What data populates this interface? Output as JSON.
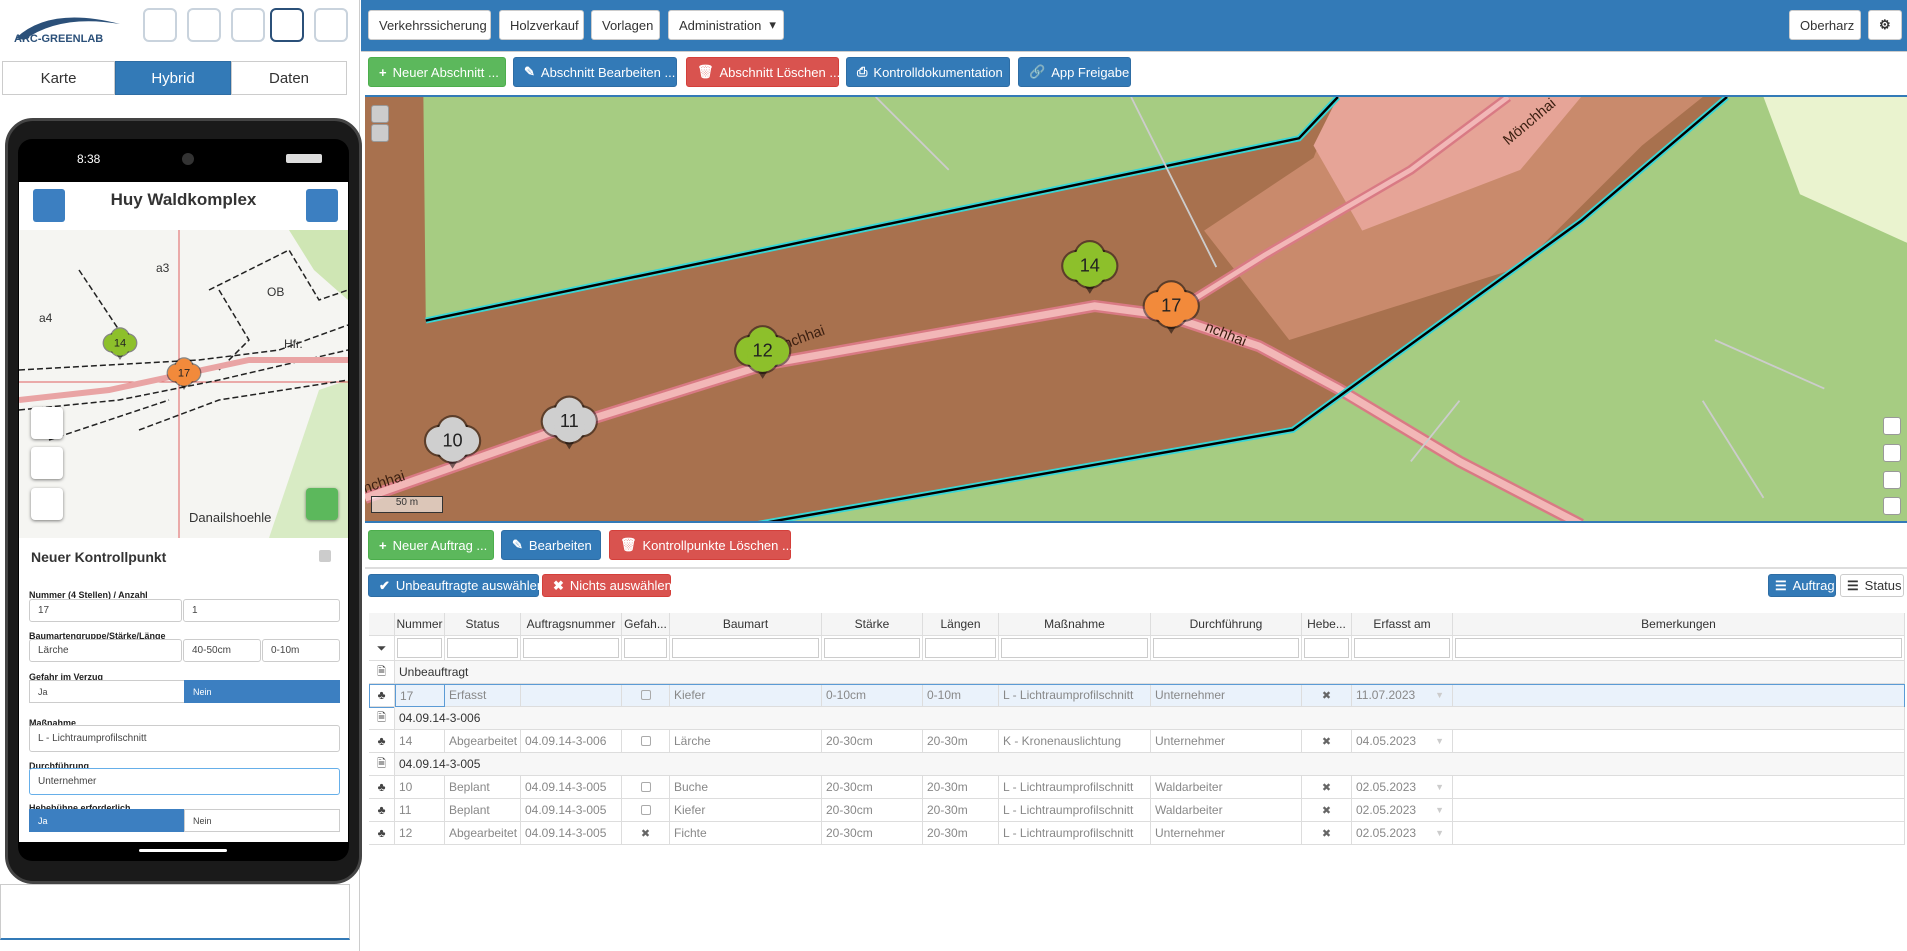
{
  "header": {
    "logo": "ARC-GREENLAB",
    "nav": [
      "Verkehrssicherung",
      "Holzverkauf",
      "Vorlagen",
      "Administration"
    ],
    "user": "Oberharz"
  },
  "view_tabs": {
    "items": [
      "Karte",
      "Hybrid",
      "Daten"
    ],
    "active": 1
  },
  "toolbar": [
    "Neuer Abschnitt ...",
    "Abschnitt Bearbeiten ...",
    "Abschnitt Löschen ...",
    "Kontrolldokumentation",
    "App Freigabe"
  ],
  "map": {
    "markers": [
      {
        "label": "14",
        "color": "#8dc02b"
      },
      {
        "label": "17",
        "color": "#f28a3b"
      },
      {
        "label": "12",
        "color": "#8dc02b"
      },
      {
        "label": "11",
        "color": "#cfcfcf"
      },
      {
        "label": "10",
        "color": "#cfcfcf"
      }
    ],
    "road_labels": [
      "Mönchhai",
      "Mönchhai",
      "nchhai",
      "nchhai"
    ],
    "scale": "50 m"
  },
  "actions": [
    "Neuer Auftrag ...",
    "Bearbeiten",
    "Kontrollpunkte Löschen ..."
  ],
  "selection": [
    "Unbeauftragte auswählen",
    "Nichts auswählen"
  ],
  "view_toggle": {
    "items": [
      "Auftrag",
      "Status"
    ],
    "active": 0
  },
  "table": {
    "columns": [
      "Nummer",
      "Status",
      "Auftragsnummer",
      "Gefah...",
      "Baumart",
      "Stärke",
      "Längen",
      "Maßnahme",
      "Durchführung",
      "Hebe...",
      "Erfasst am",
      "Bemerkungen"
    ],
    "groups": [
      {
        "label": "Unbeauftragt",
        "rows": [
          [
            "17",
            "Erfasst",
            null,
            false,
            "Kiefer",
            "0-10cm",
            "0-10m",
            "L - Lichtraumprofilschnitt",
            "Unternehmer",
            true,
            "11.07.2023"
          ]
        ]
      },
      {
        "label": "04.09.14-3-006",
        "rows": [
          [
            "14",
            "Abgearbeitet",
            "04.09.14-3-006",
            false,
            "Lärche",
            "20-30cm",
            "20-30m",
            "K - Kronenauslichtung",
            "Unternehmer",
            true,
            "04.05.2023"
          ]
        ]
      },
      {
        "label": "04.09.14-3-005",
        "rows": [
          [
            "10",
            "Beplant",
            "04.09.14-3-005",
            false,
            "Buche",
            "20-30cm",
            "20-30m",
            "L - Lichtraumprofilschnitt",
            "Waldarbeiter",
            true,
            "02.05.2023"
          ],
          [
            "11",
            "Beplant",
            "04.09.14-3-005",
            false,
            "Kiefer",
            "20-30cm",
            "20-30m",
            "L - Lichtraumprofilschnitt",
            "Waldarbeiter",
            true,
            "02.05.2023"
          ],
          [
            "12",
            "Abgearbeitet",
            "04.09.14-3-005",
            true,
            "Fichte",
            "20-30cm",
            "20-30m",
            "L - Lichtraumprofilschnitt",
            "Unternehmer",
            true,
            "02.05.2023"
          ]
        ]
      }
    ],
    "selected_row": [
      0,
      0
    ]
  },
  "phone": {
    "time": "8:38",
    "title": "Huy Waldkomplex",
    "map_labels": [
      "a3",
      "a4",
      "OB",
      "Hfr.",
      "Danailshoehle"
    ],
    "markers": [
      {
        "label": "14",
        "color": "#8dc02b"
      },
      {
        "label": "17",
        "color": "#f28a3b"
      }
    ],
    "form": {
      "title": "Neuer Kontrollpunkt",
      "fields": [
        {
          "label": "Nummer (4 Stellen) / Anzahl",
          "values": [
            "17",
            "1"
          ]
        },
        {
          "label": "Baumartengruppe/Stärke/Länge",
          "values": [
            "Lärche",
            "40-50cm",
            "0-10m"
          ]
        },
        {
          "label": "Gefahr im Verzug",
          "options": [
            "Ja",
            "Nein"
          ],
          "selected": 1
        },
        {
          "label": "Maßnahme",
          "values": [
            "L - Lichtraumprofilschnitt"
          ]
        },
        {
          "label": "Durchführung",
          "values": [
            "Unternehmer"
          ],
          "focused": true
        },
        {
          "label": "Hebebühne erforderlich",
          "options": [
            "Ja",
            "Nein"
          ],
          "selected": 0
        }
      ]
    }
  }
}
